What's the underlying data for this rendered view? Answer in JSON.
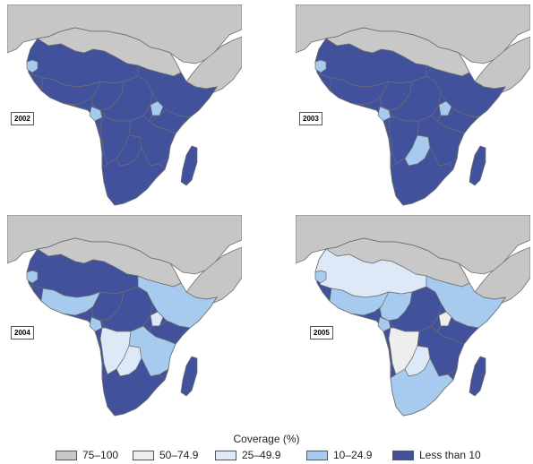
{
  "colors": {
    "ocean": "#ffffff",
    "border": "#6e6e6e",
    "land_other": "#c6c6c6"
  },
  "legend": {
    "title": "Coverage (%)",
    "classes": [
      {
        "label": "75–100",
        "color": "#c8c8c8"
      },
      {
        "label": "50–74.9",
        "color": "#eeeeee"
      },
      {
        "label": "25–49.9",
        "color": "#dde9f7"
      },
      {
        "label": "10–24.9",
        "color": "#a7cbef"
      },
      {
        "label": "Less than 10",
        "color": "#41519b"
      }
    ]
  },
  "maps": [
    {
      "year": "2002",
      "class_of": {
        "N": 0,
        "W": 4,
        "SEN": 3,
        "G": 4,
        "WC": 4,
        "GAB": 3,
        "C": 4,
        "E": 4,
        "UG": 3,
        "H": 4,
        "SW": 4,
        "BOT": 4,
        "SE": 4,
        "SA": 4,
        "MDG": 4
      }
    },
    {
      "year": "2003",
      "class_of": {
        "N": 0,
        "W": 4,
        "SEN": 3,
        "G": 4,
        "WC": 4,
        "GAB": 3,
        "C": 4,
        "E": 4,
        "UG": 3,
        "H": 4,
        "SW": 4,
        "BOT": 3,
        "SE": 4,
        "SA": 4,
        "MDG": 4
      }
    },
    {
      "year": "2004",
      "class_of": {
        "N": 0,
        "W": 4,
        "SEN": 3,
        "G": 3,
        "WC": 4,
        "GAB": 3,
        "C": 4,
        "E": 3,
        "UG": 2,
        "H": 4,
        "SW": 2,
        "BOT": 2,
        "SE": 3,
        "SA": 4,
        "MDG": 4
      }
    },
    {
      "year": "2005",
      "class_of": {
        "N": 0,
        "W": 2,
        "SEN": 3,
        "G": 3,
        "WC": 3,
        "GAB": 3,
        "C": 4,
        "E": 3,
        "UG": 1,
        "H": 4,
        "SW": 1,
        "BOT": 2,
        "SE": 4,
        "SA": 3,
        "MDG": 4
      }
    }
  ]
}
